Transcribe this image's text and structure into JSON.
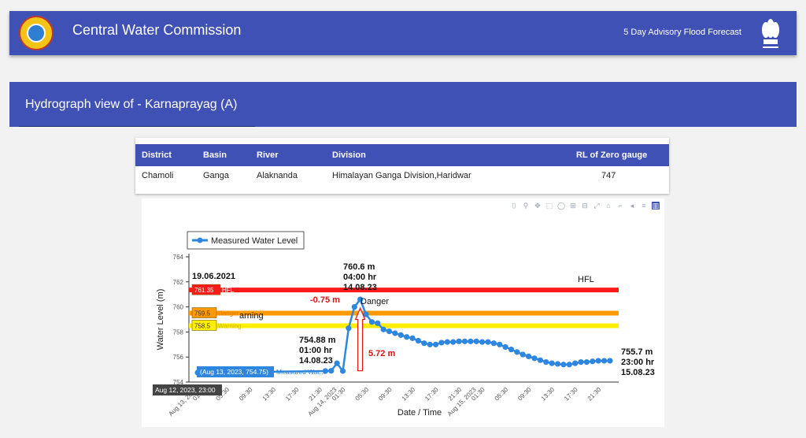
{
  "header": {
    "app_title": "Central Water Commission",
    "advisory": "5 Day Advisory Flood Forecast",
    "logo_icon": "cwc-logo-icon",
    "emblem_icon": "national-emblem-icon",
    "color": "#3f51b5"
  },
  "hydrograph": {
    "title": "Hydrograph view of - Karnaprayag (A)"
  },
  "station": {
    "headers": [
      "District",
      "Basin",
      "River",
      "Division",
      "RL of Zero gauge"
    ],
    "values": [
      "Chamoli",
      "Ganga",
      "Alaknanda",
      "Himalayan Ganga Division,Haridwar",
      "747"
    ]
  },
  "toolbar": {
    "icons": [
      "camera-icon",
      "zoom-icon",
      "pan-icon",
      "box-select-icon",
      "lasso-icon",
      "zoom-in-icon",
      "zoom-out-icon",
      "autoscale-icon",
      "home-icon",
      "spike-icon",
      "hover-closest-icon",
      "hover-compare-icon",
      "plotly-logo-icon"
    ],
    "glyphs": [
      "⌷",
      "⚲",
      "✥",
      "⬚",
      "◯",
      "⊞",
      "⊟",
      "⤢",
      "⌂",
      "⌐",
      "◂",
      "≡",
      "▥"
    ]
  },
  "chart_data": {
    "type": "line",
    "xlabel": "Date / Time",
    "ylabel": "Water Level (m)",
    "ylim": [
      754,
      764
    ],
    "yticks": [
      754,
      756,
      758,
      760,
      762,
      764
    ],
    "x_tick_labels": [
      "01:30",
      "Aug 13, 2023",
      "05:30",
      "09:30",
      "13:30",
      "17:30",
      "21:30",
      "01:30",
      "Aug 14, 2023",
      "05:30",
      "09:30",
      "13:30",
      "17:30",
      "21:30",
      "01:30",
      "Aug 15, 2023",
      "05:30",
      "09:30",
      "13:30",
      "17:30",
      "21:30"
    ],
    "legend": {
      "label": "Measured Water Level",
      "position": "top-left"
    },
    "series": [
      {
        "name": "Measured Water Level",
        "color": "#2e86de",
        "x": [
          "2023-08-13 00:00",
          "2023-08-13 01:00",
          "2023-08-13 22:00",
          "2023-08-13 23:00",
          "2023-08-14 00:00",
          "2023-08-14 01:00",
          "2023-08-14 02:00",
          "2023-08-14 03:00",
          "2023-08-14 04:00",
          "2023-08-14 05:00",
          "2023-08-14 06:00",
          "2023-08-14 07:00",
          "2023-08-14 08:00",
          "2023-08-14 09:00",
          "2023-08-14 10:00",
          "2023-08-14 11:00",
          "2023-08-14 12:00",
          "2023-08-14 13:00",
          "2023-08-14 14:00",
          "2023-08-14 15:00",
          "2023-08-14 16:00",
          "2023-08-14 17:00",
          "2023-08-14 18:00",
          "2023-08-14 19:00",
          "2023-08-14 20:00",
          "2023-08-14 21:00",
          "2023-08-14 22:00",
          "2023-08-14 23:00",
          "2023-08-15 00:00",
          "2023-08-15 01:00",
          "2023-08-15 02:00",
          "2023-08-15 03:00",
          "2023-08-15 04:00",
          "2023-08-15 05:00",
          "2023-08-15 06:00",
          "2023-08-15 07:00",
          "2023-08-15 08:00",
          "2023-08-15 09:00",
          "2023-08-15 10:00",
          "2023-08-15 11:00",
          "2023-08-15 12:00",
          "2023-08-15 13:00",
          "2023-08-15 14:00",
          "2023-08-15 15:00",
          "2023-08-15 16:00",
          "2023-08-15 17:00",
          "2023-08-15 18:00",
          "2023-08-15 19:00",
          "2023-08-15 20:00",
          "2023-08-15 21:00",
          "2023-08-15 22:00",
          "2023-08-15 23:00"
        ],
        "y": [
          754.75,
          754.75,
          754.88,
          754.9,
          755.5,
          754.88,
          758.3,
          760.0,
          760.6,
          759.4,
          758.8,
          758.7,
          758.2,
          758.05,
          757.9,
          757.75,
          757.6,
          757.5,
          757.3,
          757.1,
          757.0,
          757.0,
          757.15,
          757.2,
          757.2,
          757.25,
          757.25,
          757.25,
          757.25,
          757.2,
          757.2,
          757.1,
          757.0,
          756.8,
          756.6,
          756.4,
          756.2,
          756.05,
          755.9,
          755.75,
          755.6,
          755.5,
          755.45,
          755.4,
          755.4,
          755.5,
          755.6,
          755.6,
          755.65,
          755.7,
          755.7,
          755.7
        ]
      }
    ],
    "thresholds": [
      {
        "name": "HFL",
        "value": 761.35,
        "label": "761.35",
        "color": "#ff1a1a"
      },
      {
        "name": "Danger",
        "value": 759.5,
        "label": "759.5",
        "color": "#ff9900"
      },
      {
        "name": "Warning",
        "value": 758.5,
        "label": "758.5",
        "color": "#ffee00"
      }
    ],
    "annotations": {
      "hfl_date": "19.06.2021",
      "hfl_text": "HFL",
      "danger_text": "Danger",
      "warning_partial": "arning",
      "below_hfl": "-0.75 m",
      "rise": "5.72 m",
      "peak": [
        "760.6 m",
        "04:00 hr",
        "14.08.23"
      ],
      "low": [
        "754.88 m",
        "01:00 hr",
        "14.08.23"
      ],
      "last": [
        "755.7 m",
        "23:00 hr",
        "15.08.23"
      ]
    },
    "hover": {
      "point": "(Aug 13, 2023, 754.75)",
      "trace": "Measured Wat...",
      "x": "Aug 12, 2023, 23:00"
    }
  }
}
